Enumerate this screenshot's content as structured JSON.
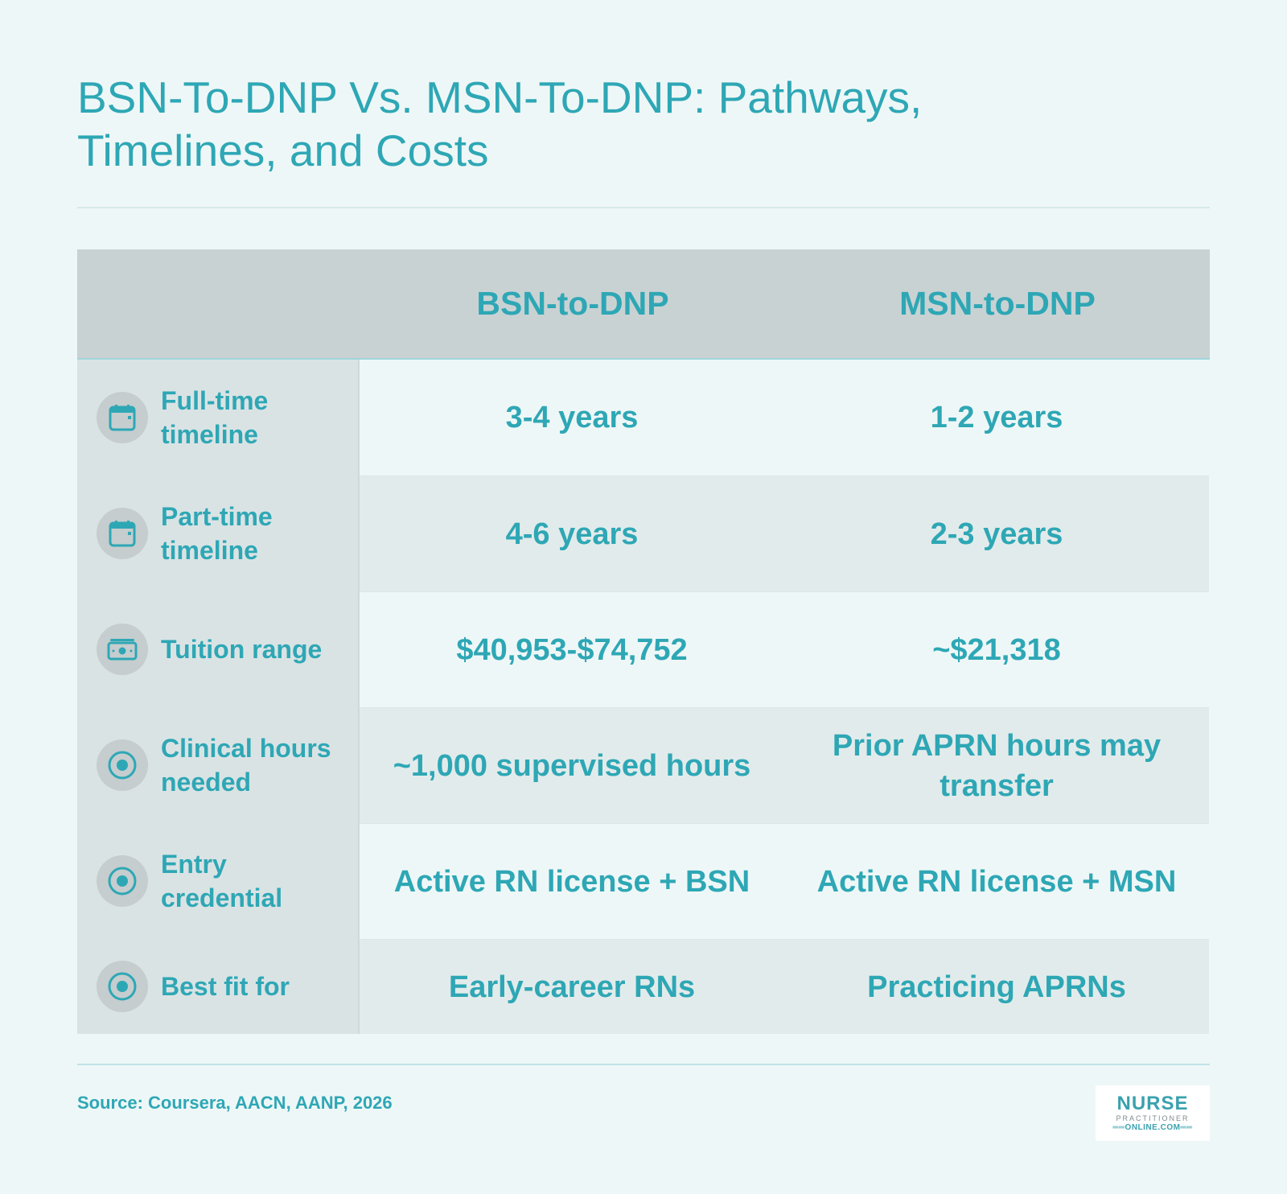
{
  "title": "BSN-To-DNP Vs. MSN-To-DNP: Pathways, Timelines, and Costs",
  "table": {
    "columns": [
      "BSN-to-DNP",
      "MSN-to-DNP"
    ],
    "rows": [
      {
        "label": "Full-time timeline",
        "icon": "calendar-icon",
        "values": [
          "3-4 years",
          "1-2 years"
        ]
      },
      {
        "label": "Part-time timeline",
        "icon": "calendar-icon",
        "values": [
          "4-6 years",
          "2-3 years"
        ]
      },
      {
        "label": "Tuition range",
        "icon": "money-icon",
        "values": [
          "$40,953-$74,752",
          "~$21,318"
        ]
      },
      {
        "label": "Clinical hours needed",
        "icon": "target-icon",
        "values": [
          "~1,000 supervised hours",
          "Prior APRN hours may transfer"
        ]
      },
      {
        "label": "Entry credential",
        "icon": "target-icon",
        "values": [
          "Active RN license + BSN",
          "Active RN license + MSN"
        ]
      },
      {
        "label": "Best fit for",
        "icon": "target-icon",
        "values": [
          "Early-career RNs",
          "Practicing APRNs"
        ]
      }
    ]
  },
  "source": "Source: Coursera, AACN, AANP, 2026",
  "logo": {
    "main": "NURSE",
    "sub": "PRACTITIONER",
    "domain": "══ONLINE.COM══"
  },
  "colors": {
    "accent": "#2ea7b5",
    "background": "#eef7f7",
    "header_bg": "#c9d2d3",
    "rowhead_bg": "#dae3e4"
  }
}
